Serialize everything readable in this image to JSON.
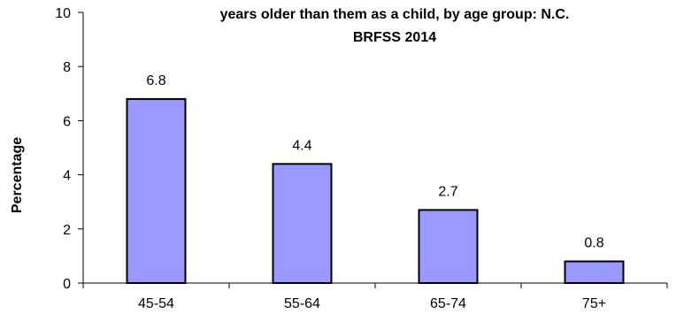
{
  "chart_data": {
    "type": "bar",
    "title_lines": [
      "years older than them as a child, by age group: N.C.",
      "BRFSS 2014"
    ],
    "xlabel": "",
    "ylabel": "Percentage",
    "categories": [
      "45-54",
      "55-64",
      "65-74",
      "75+"
    ],
    "values": [
      6.8,
      4.4,
      2.7,
      0.8
    ],
    "value_labels": [
      "6.8",
      "4.4",
      "2.7",
      "0.8"
    ],
    "ylim": [
      0,
      10
    ],
    "yticks": [
      0,
      2,
      4,
      6,
      8,
      10
    ],
    "grid": false,
    "bar_fill": "#9999ff",
    "bar_stroke": "#000000"
  }
}
